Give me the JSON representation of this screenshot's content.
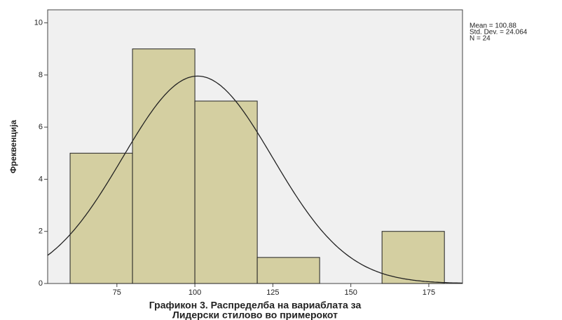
{
  "chart_data": {
    "type": "histogram",
    "title": [
      "Графикон 3. Распределба на вариаблата за",
      "Лидерски стилово во примерокот"
    ],
    "ylabel": "Фреквенција",
    "bins": [
      60,
      80,
      100,
      120,
      140,
      160,
      180
    ],
    "values": [
      5,
      9,
      7,
      1,
      0,
      2
    ],
    "color": "#d4cfa1",
    "xlim": [
      52.8,
      185.8
    ],
    "xticks": [
      75,
      100,
      125,
      150,
      175
    ],
    "ylim": [
      0,
      10.5
    ],
    "yticks": [
      0,
      2,
      4,
      6,
      8,
      10
    ],
    "stats": [
      {
        "value": 100.88,
        "label": "Mean = 100.88"
      },
      {
        "value": 24.064,
        "label": "Std. Dev. = 24.064"
      },
      {
        "value": 24,
        "label": "N = 24"
      }
    ]
  }
}
